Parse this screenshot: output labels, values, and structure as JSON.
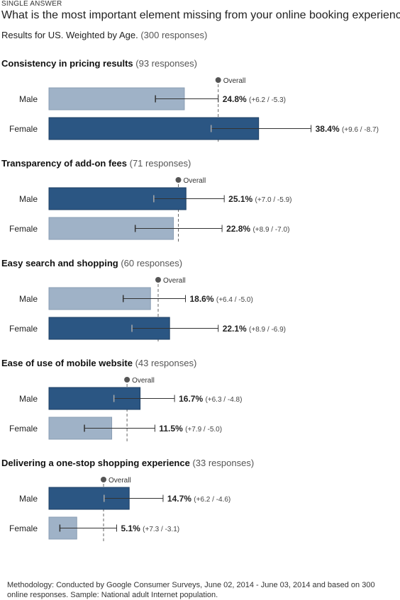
{
  "header": {
    "kicker": "SINGLE ANSWER",
    "question": "What is the most important element missing from your online booking experience?",
    "results_label": "Results for US. Weighted by Age.",
    "results_count": "(300 responses)"
  },
  "colors": {
    "highlight_bar": "#2b5683",
    "normal_bar": "#9fb2c7",
    "error_bar": "#333333",
    "overall_marker": "#555555"
  },
  "chart_data": {
    "type": "bar",
    "orientation": "horizontal",
    "overall_label": "Overall",
    "xlim": [
      0,
      50
    ],
    "groups": [
      {
        "title": "Consistency in pricing results",
        "responses": "(93 responses)",
        "overall": 31.0,
        "bars": [
          {
            "label": "Male",
            "value": 24.8,
            "value_label": "24.8%",
            "ci_label": "(+6.2 / -5.3)",
            "plus": 6.2,
            "minus": 5.3,
            "highlight": false
          },
          {
            "label": "Female",
            "value": 38.4,
            "value_label": "38.4%",
            "ci_label": "(+9.6 / -8.7)",
            "plus": 9.6,
            "minus": 8.7,
            "highlight": true
          }
        ]
      },
      {
        "title": "Transparency of add-on fees",
        "responses": "(71 responses)",
        "overall": 23.7,
        "bars": [
          {
            "label": "Male",
            "value": 25.1,
            "value_label": "25.1%",
            "ci_label": "(+7.0 / -5.9)",
            "plus": 7.0,
            "minus": 5.9,
            "highlight": true
          },
          {
            "label": "Female",
            "value": 22.8,
            "value_label": "22.8%",
            "ci_label": "(+8.9 / -7.0)",
            "plus": 8.9,
            "minus": 7.0,
            "highlight": false
          }
        ]
      },
      {
        "title": "Easy search and shopping",
        "responses": "(60 responses)",
        "overall": 20.0,
        "bars": [
          {
            "label": "Male",
            "value": 18.6,
            "value_label": "18.6%",
            "ci_label": "(+6.4 / -5.0)",
            "plus": 6.4,
            "minus": 5.0,
            "highlight": false
          },
          {
            "label": "Female",
            "value": 22.1,
            "value_label": "22.1%",
            "ci_label": "(+8.9 / -6.9)",
            "plus": 8.9,
            "minus": 6.9,
            "highlight": true
          }
        ]
      },
      {
        "title": "Ease of use of mobile website",
        "responses": "(43 responses)",
        "overall": 14.3,
        "bars": [
          {
            "label": "Male",
            "value": 16.7,
            "value_label": "16.7%",
            "ci_label": "(+6.3 / -4.8)",
            "plus": 6.3,
            "minus": 4.8,
            "highlight": true
          },
          {
            "label": "Female",
            "value": 11.5,
            "value_label": "11.5%",
            "ci_label": "(+7.9 / -5.0)",
            "plus": 7.9,
            "minus": 5.0,
            "highlight": false
          }
        ]
      },
      {
        "title": "Delivering a one-stop shopping experience",
        "responses": "(33 responses)",
        "overall": 10.0,
        "bars": [
          {
            "label": "Male",
            "value": 14.7,
            "value_label": "14.7%",
            "ci_label": "(+6.2 / -4.6)",
            "plus": 6.2,
            "minus": 4.6,
            "highlight": true
          },
          {
            "label": "Female",
            "value": 5.1,
            "value_label": "5.1%",
            "ci_label": "(+7.3 / -3.1)",
            "plus": 7.3,
            "minus": 3.1,
            "highlight": false
          }
        ]
      }
    ]
  },
  "footer": {
    "methodology": "Methodology: Conducted by Google Consumer Surveys, June 02, 2014 - June 03, 2014 and based on 300 online responses. Sample: National adult Internet population."
  }
}
